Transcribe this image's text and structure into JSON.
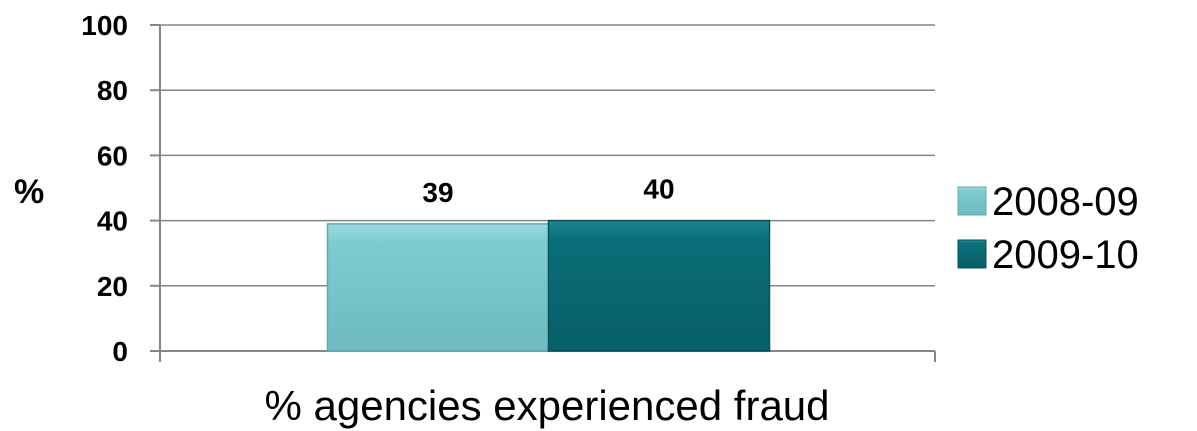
{
  "chart_data": {
    "type": "bar",
    "categories": [
      "% agencies experienced fraud"
    ],
    "series": [
      {
        "name": "2008-09",
        "values": [
          39
        ],
        "color": "#7ECBD0"
      },
      {
        "name": "2009-10",
        "values": [
          40
        ],
        "color": "#0B6E78"
      }
    ],
    "xlabel": "% agencies experienced fraud",
    "ylabel": "%",
    "ylim": [
      0,
      100
    ],
    "yticks": [
      "0",
      "20",
      "40",
      "60",
      "80",
      "100"
    ],
    "data_labels": [
      "39",
      "40"
    ],
    "grid": true,
    "legend": "right"
  }
}
